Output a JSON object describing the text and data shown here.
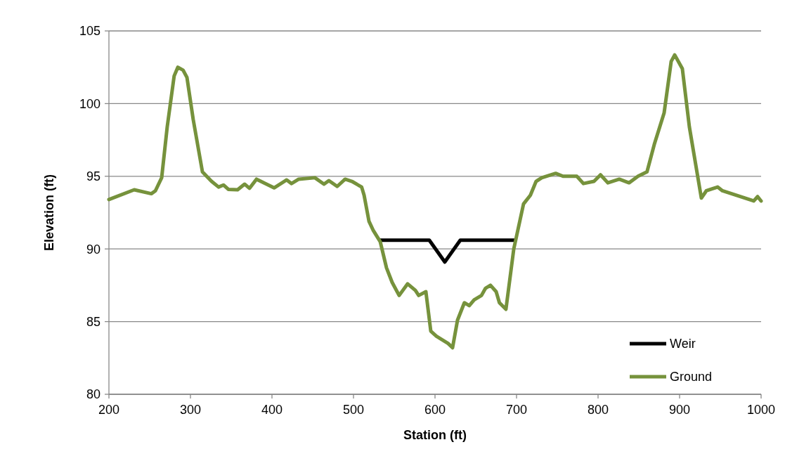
{
  "chart_data": {
    "type": "line",
    "xlabel": "Station (ft)",
    "ylabel": "Elevation (ft)",
    "xlim": [
      200,
      1000
    ],
    "xticks": [
      200,
      300,
      400,
      500,
      600,
      700,
      800,
      900,
      1000
    ],
    "ylim": [
      80,
      105
    ],
    "yticks": [
      80,
      85,
      90,
      95,
      100,
      105
    ],
    "grid": "y",
    "legend": "bottom right",
    "line_style": "solid",
    "marker": "none",
    "series": [
      {
        "name": "Weir",
        "color": "#000000",
        "x": [
          533,
          593,
          612,
          631,
          698
        ],
        "values": [
          90.6,
          90.6,
          89.1,
          90.6,
          90.6
        ]
      },
      {
        "name": "Ground",
        "color": "#76923c",
        "x": [
          200,
          231,
          252,
          257,
          264.7,
          271.5,
          280,
          284.5,
          291,
          295.7,
          303.4,
          314.7,
          325.9,
          334.5,
          340.5,
          346.5,
          357.8,
          366.4,
          372.4,
          381,
          392,
          402.6,
          418,
          424,
          432.8,
          452.6,
          463.8,
          469.8,
          480,
          489.7,
          498,
          510,
          513,
          519,
          524,
          532.8,
          540.5,
          547.4,
          556,
          566.4,
          575.9,
          580,
          588.8,
          594.8,
          601.7,
          616,
          621.5,
          627.6,
          636,
          642,
          648,
          657,
          662,
          668,
          675,
          679,
          687,
          696.6,
          708.6,
          717,
          724,
          731,
          748,
          757,
          774,
          782,
          795,
          803,
          812,
          826,
          838,
          849,
          860,
          869,
          881,
          889.7,
          894,
          903.4,
          912,
          926.7,
          932.8,
          946.6,
          952.6,
          991,
          995.7,
          1000
        ],
        "values": [
          93.4,
          94.07,
          93.8,
          94.0,
          94.9,
          98.4,
          101.9,
          102.5,
          102.3,
          101.8,
          98.9,
          95.3,
          94.65,
          94.26,
          94.4,
          94.1,
          94.07,
          94.46,
          94.17,
          94.8,
          94.5,
          94.2,
          94.75,
          94.5,
          94.8,
          94.9,
          94.46,
          94.7,
          94.3,
          94.8,
          94.65,
          94.26,
          93.7,
          91.9,
          91.3,
          90.5,
          88.7,
          87.7,
          86.8,
          87.6,
          87.15,
          86.8,
          87.06,
          84.35,
          84.0,
          83.5,
          83.2,
          85.1,
          86.3,
          86.1,
          86.5,
          86.8,
          87.3,
          87.5,
          87.06,
          86.3,
          85.85,
          90.0,
          93.1,
          93.7,
          94.65,
          94.9,
          95.2,
          95.0,
          95.0,
          94.5,
          94.65,
          95.1,
          94.55,
          94.8,
          94.55,
          95.0,
          95.3,
          97.2,
          99.35,
          102.9,
          103.35,
          102.4,
          98.4,
          93.5,
          94.0,
          94.26,
          94.0,
          93.3,
          93.6,
          93.3
        ]
      }
    ]
  }
}
